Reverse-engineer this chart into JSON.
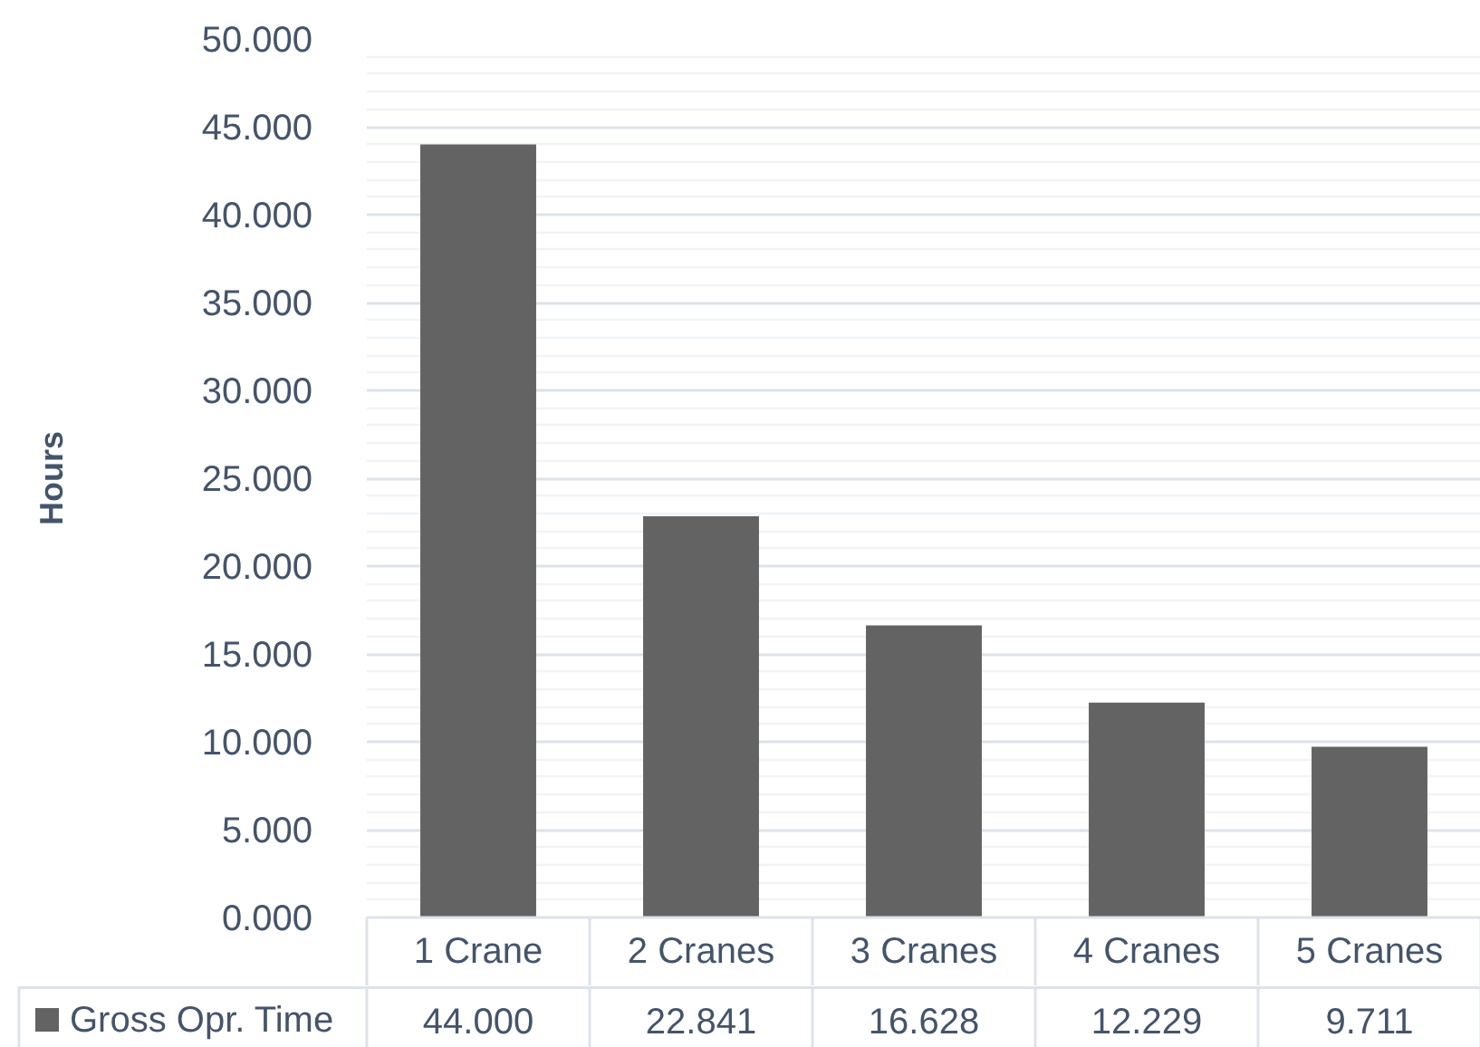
{
  "chart_data": {
    "type": "bar",
    "ylabel": "Hours",
    "categories": [
      "1 Crane",
      "2 Cranes",
      "3 Cranes",
      "4 Cranes",
      "5 Cranes"
    ],
    "series": [
      {
        "name": "Gross Opr. Time",
        "color": "#636363",
        "values": [
          44.0,
          22.841,
          16.628,
          12.229,
          9.711
        ],
        "value_labels": [
          "44.000",
          "22.841",
          "16.628",
          "12.229",
          "9.711"
        ]
      }
    ],
    "ylim": [
      0,
      50
    ],
    "yticks": [
      {
        "value": 0,
        "label": "0.000"
      },
      {
        "value": 5,
        "label": "5.000"
      },
      {
        "value": 10,
        "label": "10.000"
      },
      {
        "value": 15,
        "label": "15.000"
      },
      {
        "value": 20,
        "label": "20.000"
      },
      {
        "value": 25,
        "label": "25.000"
      },
      {
        "value": 30,
        "label": "30.000"
      },
      {
        "value": 35,
        "label": "35.000"
      },
      {
        "value": 40,
        "label": "40.000"
      },
      {
        "value": 45,
        "label": "45.000"
      },
      {
        "value": 50,
        "label": "50.000"
      }
    ],
    "grid": "y",
    "legend": "bottom"
  }
}
